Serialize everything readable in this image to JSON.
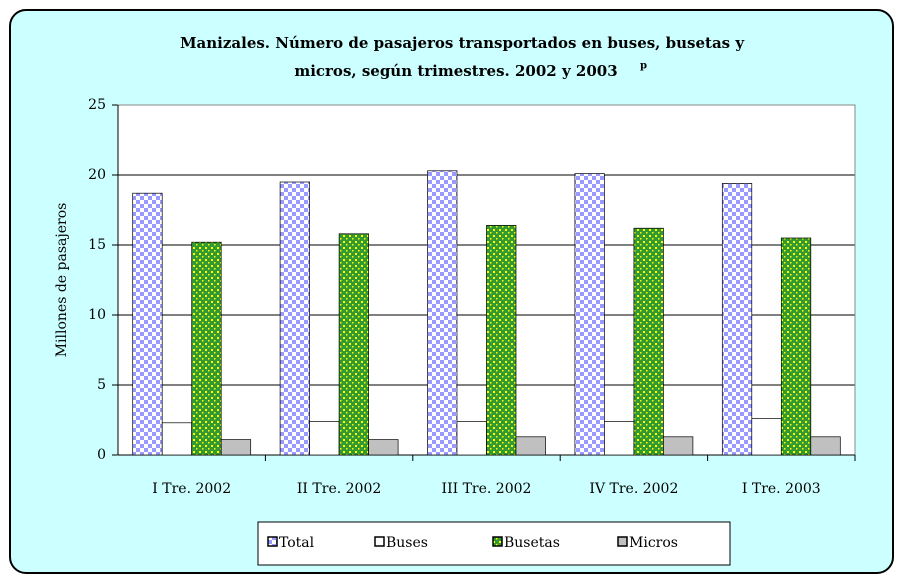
{
  "chart_data": {
    "type": "bar",
    "title": "Manizales. Número de pasajeros transportados en buses, busetas y",
    "title_line2": "micros, según trimestres. 2002 y 2003",
    "title_superscript": "p",
    "y_label": "Millones de pasajeros",
    "categories": [
      "I Tre. 2002",
      "II Tre. 2002",
      "III Tre. 2002",
      "IV Tre. 2002",
      "I Tre. 2003"
    ],
    "series": [
      {
        "name": "Total",
        "color": "#9999ff",
        "pattern": "checker",
        "values": [
          18.7,
          19.5,
          20.3,
          20.1,
          19.4
        ]
      },
      {
        "name": "Buses",
        "color": "#ffffff",
        "pattern": "none",
        "values": [
          2.3,
          2.4,
          2.4,
          2.4,
          2.6
        ]
      },
      {
        "name": "Busetas",
        "color": "#339933",
        "pattern": "dots",
        "values": [
          15.2,
          15.8,
          16.4,
          16.2,
          15.5
        ]
      },
      {
        "name": "Micros",
        "color": "#c0c0c0",
        "pattern": "none",
        "values": [
          1.1,
          1.1,
          1.3,
          1.3,
          1.3
        ]
      }
    ],
    "ylim": [
      0,
      25
    ],
    "yticks": [
      0,
      5,
      10,
      15,
      20,
      25
    ],
    "grid": true,
    "legend": "bottom"
  }
}
